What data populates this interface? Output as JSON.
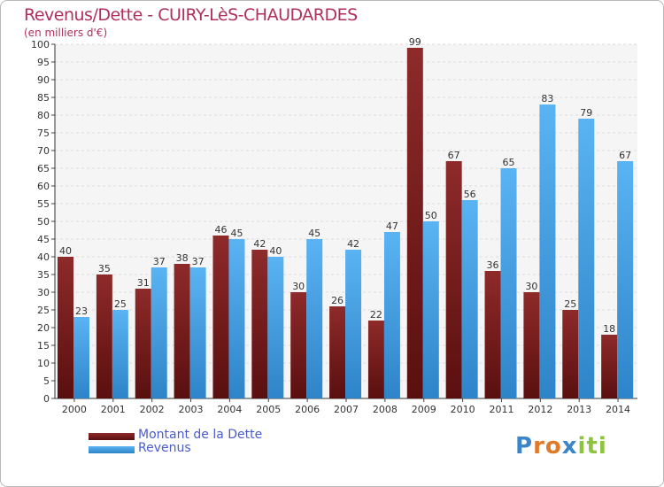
{
  "chart_data": {
    "type": "bar",
    "title": "Revenus/Dette - CUIRY-LèS-CHAUDARDES",
    "subtitle": "(en milliers d'€)",
    "categories": [
      "2000",
      "2001",
      "2002",
      "2003",
      "2004",
      "2005",
      "2006",
      "2007",
      "2008",
      "2009",
      "2010",
      "2011",
      "2012",
      "2013",
      "2014"
    ],
    "series": [
      {
        "name": "Montant de la Dette",
        "color": "#7a1a1a",
        "values": [
          40,
          35,
          31,
          38,
          46,
          42,
          30,
          26,
          22,
          99,
          67,
          36,
          30,
          25,
          18
        ]
      },
      {
        "name": "Revenus",
        "color": "#4aa3e6",
        "values": [
          23,
          25,
          37,
          37,
          45,
          40,
          45,
          42,
          47,
          50,
          56,
          65,
          83,
          79,
          67
        ]
      }
    ],
    "ylim": [
      0,
      100
    ],
    "ytick_step": 5,
    "grid": true,
    "legend_position": "bottom-left"
  },
  "logo": {
    "letters": [
      {
        "ch": "P",
        "color": "#3a86c8"
      },
      {
        "ch": "r",
        "color": "#e07a2a"
      },
      {
        "ch": "o",
        "color": "#e07a2a"
      },
      {
        "ch": "x",
        "color": "#3a86c8"
      },
      {
        "ch": "i",
        "color": "#8cc43c"
      },
      {
        "ch": "t",
        "color": "#8cc43c"
      },
      {
        "ch": "i",
        "color": "#8cc43c"
      }
    ]
  }
}
